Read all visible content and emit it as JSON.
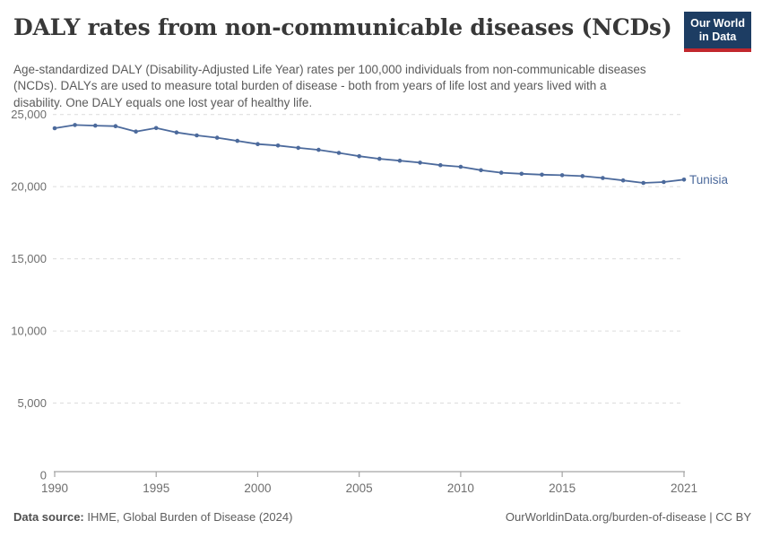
{
  "header": {
    "title": "DALY rates from non-communicable diseases (NCDs)",
    "subtitle": "Age-standardized DALY (Disability-Adjusted Life Year) rates per 100,000 individuals from non-communicable diseases (NCDs). DALYs are used to measure total burden of disease - both from years of life lost and years lived with a disability. One DALY equals one lost year of healthy life.",
    "logo": {
      "line1": "Our World",
      "line2": "in Data",
      "bg_color": "#1d3d63",
      "accent_color": "#c1272d"
    }
  },
  "chart_data": {
    "type": "line",
    "title": "DALY rates from non-communicable diseases (NCDs)",
    "xlabel": "",
    "ylabel": "",
    "x": [
      1990,
      1991,
      1992,
      1993,
      1994,
      1995,
      1996,
      1997,
      1998,
      1999,
      2000,
      2001,
      2002,
      2003,
      2004,
      2005,
      2006,
      2007,
      2008,
      2009,
      2010,
      2011,
      2012,
      2013,
      2014,
      2015,
      2016,
      2017,
      2018,
      2019,
      2020,
      2021
    ],
    "series": [
      {
        "name": "Tunisia",
        "color": "#4c6a9c",
        "values": [
          24050,
          24270,
          24230,
          24190,
          23820,
          24060,
          23760,
          23550,
          23390,
          23170,
          22950,
          22850,
          22690,
          22550,
          22340,
          22110,
          21930,
          21800,
          21660,
          21490,
          21380,
          21140,
          20970,
          20890,
          20830,
          20790,
          20730,
          20600,
          20430,
          20260,
          20320,
          20490
        ]
      }
    ],
    "x_ticks": [
      1990,
      1995,
      2000,
      2005,
      2010,
      2015,
      2021
    ],
    "y_ticks": [
      0,
      5000,
      10000,
      15000,
      20000,
      25000
    ],
    "xlim": [
      1990,
      2021
    ],
    "ylim": [
      0,
      25000
    ],
    "grid": "horizontal-dashed",
    "legend_position": "end-of-line-label",
    "end_label": "Tunisia",
    "styles": {
      "line_color": "#4c6a9c",
      "marker_color": "#4c6a9c",
      "grid_color": "#dcdcdc",
      "axis_color": "#a3a3a3",
      "tick_label_color": "#6e6e6e",
      "end_label_color": "#4c6a9c"
    }
  },
  "footer": {
    "source_label": "Data source:",
    "source_text": " IHME, Global Burden of Disease (2024)",
    "link_text": "OurWorldinData.org/burden-of-disease | CC BY"
  }
}
